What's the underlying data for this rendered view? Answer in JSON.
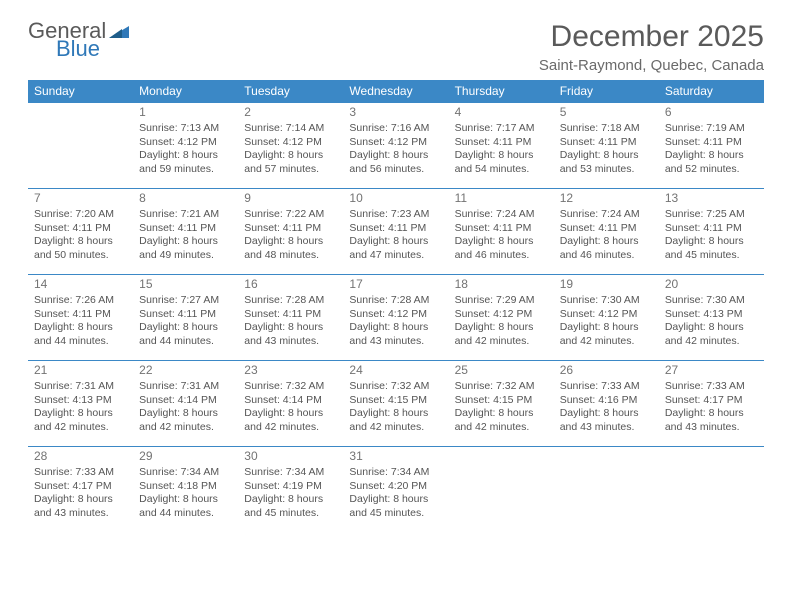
{
  "logo": {
    "word1": "General",
    "word2": "Blue",
    "shape_color": "#2f78b8"
  },
  "colors": {
    "header_bg": "#3b88c6",
    "header_fg": "#ffffff",
    "cell_border": "#3b88c6",
    "text": "#555555",
    "daynum": "#737373",
    "title": "#5a5a5a",
    "background": "#ffffff"
  },
  "title": "December 2025",
  "location": "Saint-Raymond, Quebec, Canada",
  "day_headers": [
    "Sunday",
    "Monday",
    "Tuesday",
    "Wednesday",
    "Thursday",
    "Friday",
    "Saturday"
  ],
  "grid": {
    "rows": 5,
    "cols": 7,
    "start_offset": 1,
    "days_in_month": 31
  },
  "days": {
    "1": {
      "sunrise": "7:13 AM",
      "sunset": "4:12 PM",
      "daylight": "8 hours and 59 minutes."
    },
    "2": {
      "sunrise": "7:14 AM",
      "sunset": "4:12 PM",
      "daylight": "8 hours and 57 minutes."
    },
    "3": {
      "sunrise": "7:16 AM",
      "sunset": "4:12 PM",
      "daylight": "8 hours and 56 minutes."
    },
    "4": {
      "sunrise": "7:17 AM",
      "sunset": "4:11 PM",
      "daylight": "8 hours and 54 minutes."
    },
    "5": {
      "sunrise": "7:18 AM",
      "sunset": "4:11 PM",
      "daylight": "8 hours and 53 minutes."
    },
    "6": {
      "sunrise": "7:19 AM",
      "sunset": "4:11 PM",
      "daylight": "8 hours and 52 minutes."
    },
    "7": {
      "sunrise": "7:20 AM",
      "sunset": "4:11 PM",
      "daylight": "8 hours and 50 minutes."
    },
    "8": {
      "sunrise": "7:21 AM",
      "sunset": "4:11 PM",
      "daylight": "8 hours and 49 minutes."
    },
    "9": {
      "sunrise": "7:22 AM",
      "sunset": "4:11 PM",
      "daylight": "8 hours and 48 minutes."
    },
    "10": {
      "sunrise": "7:23 AM",
      "sunset": "4:11 PM",
      "daylight": "8 hours and 47 minutes."
    },
    "11": {
      "sunrise": "7:24 AM",
      "sunset": "4:11 PM",
      "daylight": "8 hours and 46 minutes."
    },
    "12": {
      "sunrise": "7:24 AM",
      "sunset": "4:11 PM",
      "daylight": "8 hours and 46 minutes."
    },
    "13": {
      "sunrise": "7:25 AM",
      "sunset": "4:11 PM",
      "daylight": "8 hours and 45 minutes."
    },
    "14": {
      "sunrise": "7:26 AM",
      "sunset": "4:11 PM",
      "daylight": "8 hours and 44 minutes."
    },
    "15": {
      "sunrise": "7:27 AM",
      "sunset": "4:11 PM",
      "daylight": "8 hours and 44 minutes."
    },
    "16": {
      "sunrise": "7:28 AM",
      "sunset": "4:11 PM",
      "daylight": "8 hours and 43 minutes."
    },
    "17": {
      "sunrise": "7:28 AM",
      "sunset": "4:12 PM",
      "daylight": "8 hours and 43 minutes."
    },
    "18": {
      "sunrise": "7:29 AM",
      "sunset": "4:12 PM",
      "daylight": "8 hours and 42 minutes."
    },
    "19": {
      "sunrise": "7:30 AM",
      "sunset": "4:12 PM",
      "daylight": "8 hours and 42 minutes."
    },
    "20": {
      "sunrise": "7:30 AM",
      "sunset": "4:13 PM",
      "daylight": "8 hours and 42 minutes."
    },
    "21": {
      "sunrise": "7:31 AM",
      "sunset": "4:13 PM",
      "daylight": "8 hours and 42 minutes."
    },
    "22": {
      "sunrise": "7:31 AM",
      "sunset": "4:14 PM",
      "daylight": "8 hours and 42 minutes."
    },
    "23": {
      "sunrise": "7:32 AM",
      "sunset": "4:14 PM",
      "daylight": "8 hours and 42 minutes."
    },
    "24": {
      "sunrise": "7:32 AM",
      "sunset": "4:15 PM",
      "daylight": "8 hours and 42 minutes."
    },
    "25": {
      "sunrise": "7:32 AM",
      "sunset": "4:15 PM",
      "daylight": "8 hours and 42 minutes."
    },
    "26": {
      "sunrise": "7:33 AM",
      "sunset": "4:16 PM",
      "daylight": "8 hours and 43 minutes."
    },
    "27": {
      "sunrise": "7:33 AM",
      "sunset": "4:17 PM",
      "daylight": "8 hours and 43 minutes."
    },
    "28": {
      "sunrise": "7:33 AM",
      "sunset": "4:17 PM",
      "daylight": "8 hours and 43 minutes."
    },
    "29": {
      "sunrise": "7:34 AM",
      "sunset": "4:18 PM",
      "daylight": "8 hours and 44 minutes."
    },
    "30": {
      "sunrise": "7:34 AM",
      "sunset": "4:19 PM",
      "daylight": "8 hours and 45 minutes."
    },
    "31": {
      "sunrise": "7:34 AM",
      "sunset": "4:20 PM",
      "daylight": "8 hours and 45 minutes."
    }
  },
  "labels": {
    "sunrise": "Sunrise:",
    "sunset": "Sunset:",
    "daylight": "Daylight:"
  }
}
